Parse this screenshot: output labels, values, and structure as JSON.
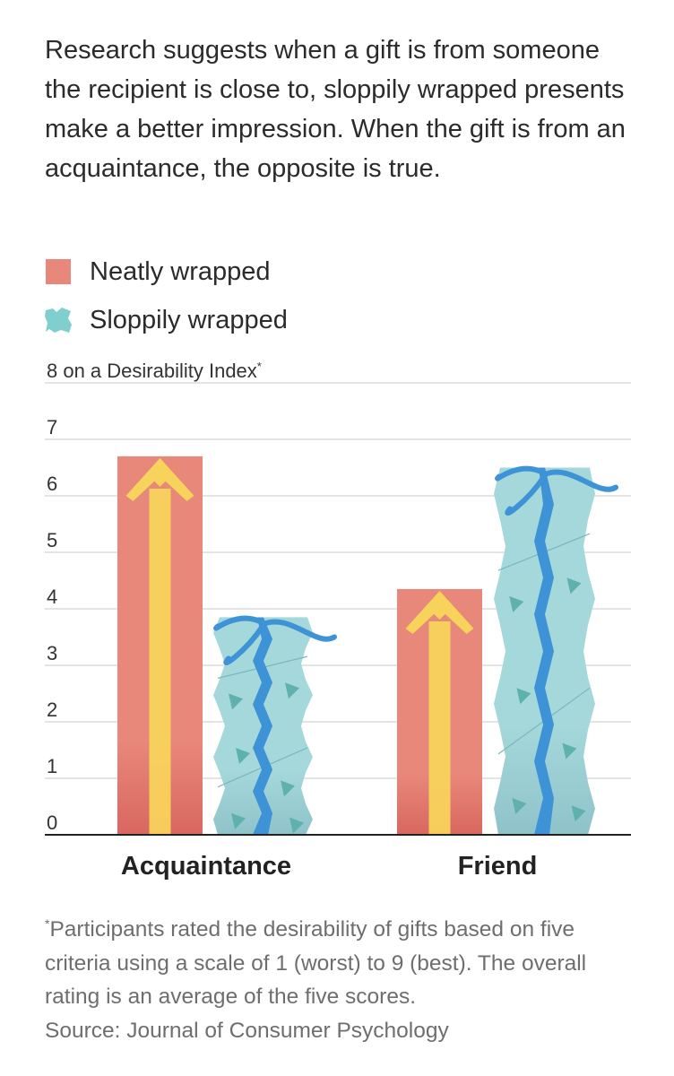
{
  "subtitle": "Research suggests when a gift is from someone the recipient is close to, sloppily wrapped presents make a better impression. When the gift is from an acquaintance, the opposite is true.",
  "legend": [
    {
      "label": "Neatly wrapped",
      "color": "#e8887a",
      "icon": "neat-box-square-icon"
    },
    {
      "label": "Sloppily wrapped",
      "color": "#7fcfcf",
      "icon": "crumpled-paper-icon"
    }
  ],
  "colors": {
    "neat": "#e8887a",
    "neat_dark": "#d9675f",
    "arrow": "#f8d35c",
    "sloppy": "#a4d8da",
    "sloppy_dark": "#8fc3ca",
    "ribbon": "#3d93d6",
    "axis": "#222222",
    "grid": "#dcdcdc"
  },
  "chart_data": {
    "type": "bar",
    "categories": [
      "Acquaintance",
      "Friend"
    ],
    "series": [
      {
        "name": "Neatly wrapped",
        "values": [
          6.7,
          4.35
        ]
      },
      {
        "name": "Sloppily wrapped",
        "values": [
          3.85,
          6.5
        ]
      }
    ],
    "ylim": [
      0,
      8
    ],
    "yticks": [
      "0",
      "1",
      "2",
      "3",
      "4",
      "5",
      "6",
      "7"
    ],
    "top_label_main": "8 on a Desirability Index",
    "top_label_marker": "*",
    "grid": true
  },
  "footnote": {
    "marker": "*",
    "text": "Participants rated the desirability of gifts based on five criteria using a scale of 1 (worst) to 9 (best). The overall rating is an average of the five scores.",
    "source": "Source: Journal of Consumer Psychology"
  }
}
